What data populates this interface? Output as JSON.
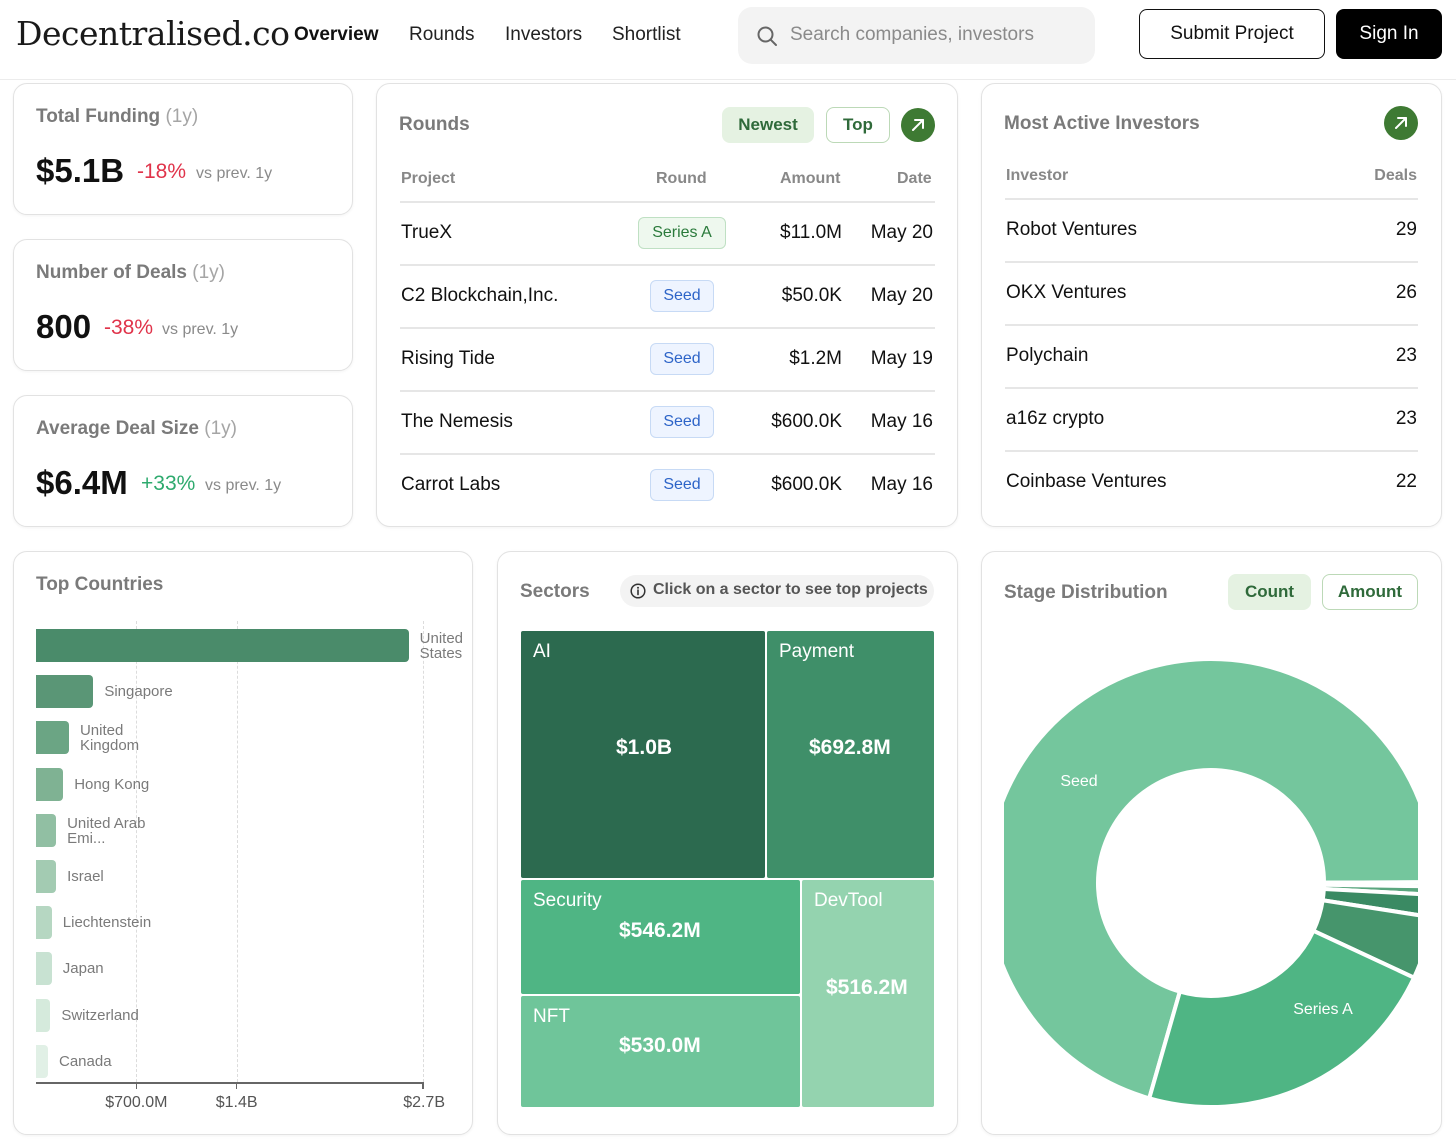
{
  "header": {
    "logo": "Decentralised.co",
    "nav": [
      "Overview",
      "Rounds",
      "Investors",
      "Shortlist"
    ],
    "search_placeholder": "Search companies, investors",
    "submit_label": "Submit Project",
    "signin_label": "Sign In"
  },
  "kpis": {
    "total_funding": {
      "title": "Total Funding",
      "period": "(1y)",
      "value": "$5.1B",
      "change": "-18%",
      "vs": "vs prev. 1y"
    },
    "deals": {
      "title": "Number of Deals",
      "period": "(1y)",
      "value": "800",
      "change": "-38%",
      "vs": "vs prev. 1y"
    },
    "avg_deal": {
      "title": "Average Deal Size",
      "period": "(1y)",
      "value": "$6.4M",
      "change": "+33%",
      "vs": "vs prev. 1y"
    }
  },
  "rounds": {
    "title": "Rounds",
    "tab_newest": "Newest",
    "tab_top": "Top",
    "columns": [
      "Project",
      "Round",
      "Amount",
      "Date"
    ],
    "rows": [
      {
        "project": "TrueX",
        "round": "Series A",
        "amount": "$11.0M",
        "date": "May 20"
      },
      {
        "project": "C2 Blockchain,Inc.",
        "round": "Seed",
        "amount": "$50.0K",
        "date": "May 20"
      },
      {
        "project": "Rising Tide",
        "round": "Seed",
        "amount": "$1.2M",
        "date": "May 19"
      },
      {
        "project": "The Nemesis",
        "round": "Seed",
        "amount": "$600.0K",
        "date": "May 16"
      },
      {
        "project": "Carrot Labs",
        "round": "Seed",
        "amount": "$600.0K",
        "date": "May 16"
      }
    ]
  },
  "investors": {
    "title": "Most Active Investors",
    "columns": [
      "Investor",
      "Deals"
    ],
    "rows": [
      {
        "name": "Robot Ventures",
        "deals": "29"
      },
      {
        "name": "OKX Ventures",
        "deals": "26"
      },
      {
        "name": "Polychain",
        "deals": "23"
      },
      {
        "name": "a16z crypto",
        "deals": "23"
      },
      {
        "name": "Coinbase Ventures",
        "deals": "22"
      }
    ]
  },
  "countries": {
    "title": "Top Countries",
    "items": [
      {
        "line1": "United",
        "line2": "States",
        "value": 2.6,
        "color": "#4a8b6a"
      },
      {
        "line1": "Singapore",
        "line2": "",
        "value": 0.4,
        "color": "#5a9676"
      },
      {
        "line1": "United",
        "line2": "Kingdom",
        "value": 0.23,
        "color": "#6ba584"
      },
      {
        "line1": "Hong Kong",
        "line2": "",
        "value": 0.19,
        "color": "#7fb293"
      },
      {
        "line1": "United Arab",
        "line2": "Emi...",
        "value": 0.14,
        "color": "#91bfa3"
      },
      {
        "line1": "Israel",
        "line2": "",
        "value": 0.14,
        "color": "#a3cbb2"
      },
      {
        "line1": "Liechtenstein",
        "line2": "",
        "value": 0.11,
        "color": "#b6d7c2"
      },
      {
        "line1": "Japan",
        "line2": "",
        "value": 0.11,
        "color": "#c8e2d2"
      },
      {
        "line1": "Switzerland",
        "line2": "",
        "value": 0.1,
        "color": "#d5eadc"
      },
      {
        "line1": "Canada",
        "line2": "",
        "value": 0.08,
        "color": "#e1f0e6"
      }
    ],
    "ticks": [
      {
        "label": "$700.0M",
        "value": 0.7
      },
      {
        "label": "$1.4B",
        "value": 1.4
      },
      {
        "label": "$2.7B",
        "value": 2.7
      }
    ]
  },
  "sectors": {
    "title": "Sectors",
    "hint": "Click on a sector to see top projects",
    "tiles": [
      {
        "name": "AI",
        "value": "$1.0B",
        "color": "#2c6a4f"
      },
      {
        "name": "Payment",
        "value": "$692.8M",
        "color": "#3f8f69"
      },
      {
        "name": "Security",
        "value": "$546.2M",
        "color": "#4fb584"
      },
      {
        "name": "DevTool",
        "value": "$516.2M",
        "color": "#94d3af"
      },
      {
        "name": "NFT",
        "value": "$530.0M",
        "color": "#6fc59a"
      }
    ]
  },
  "stages": {
    "title": "Stage Distribution",
    "tab_count": "Count",
    "tab_amount": "Amount",
    "chart_data": {
      "type": "pie",
      "labels": [
        "Seed",
        "",
        "",
        "",
        "",
        "Series A"
      ],
      "values": [
        70.5,
        0.3,
        0.6,
        1.6,
        4.5,
        22.5
      ],
      "colors": [
        "#74c69d",
        "#2c6a4f",
        "#5aa67e",
        "#3a8a63",
        "#46956c",
        "#4fb584"
      ]
    }
  }
}
